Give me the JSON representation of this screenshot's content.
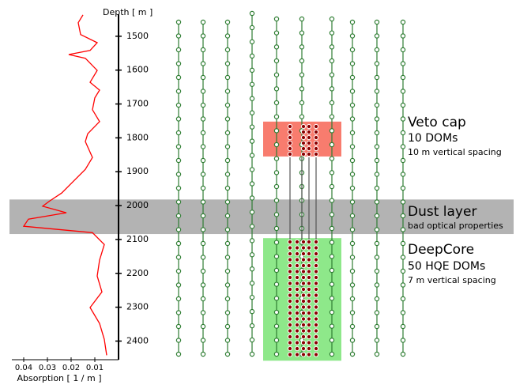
{
  "chart_data": {
    "type": "line",
    "x_label": "Absorption [ 1 / m ]",
    "y_label": "Depth [ m ]",
    "xlim": [
      0.045,
      0
    ],
    "xticks": [
      0.04,
      0.03,
      0.02,
      0.01
    ],
    "ylim": [
      1435,
      2455
    ],
    "y_inverted": true,
    "yticks": [
      1500,
      1600,
      1700,
      1800,
      1900,
      2000,
      2100,
      2200,
      2300,
      2400
    ],
    "series": [
      {
        "color": "#ff0000",
        "x": [
          0.015,
          0.017,
          0.016,
          0.009,
          0.012,
          0.021,
          0.014,
          0.009,
          0.012,
          0.008,
          0.01,
          0.011,
          0.008,
          0.013,
          0.014,
          0.011,
          0.014,
          0.019,
          0.024,
          0.029,
          0.032,
          0.022,
          0.038,
          0.04,
          0.011,
          0.006,
          0.008,
          0.009,
          0.007,
          0.012,
          0.008,
          0.006,
          0.005
        ],
        "values": [
          1437,
          1460,
          1495,
          1519,
          1542,
          1554,
          1565,
          1601,
          1636,
          1659,
          1682,
          1717,
          1752,
          1788,
          1811,
          1858,
          1893,
          1928,
          1963,
          1986,
          2002,
          2021,
          2040,
          2061,
          2080,
          2115,
          2161,
          2208,
          2255,
          2301,
          2348,
          2395,
          2442
        ]
      }
    ],
    "regions": [
      {
        "label": "Veto cap",
        "detail": "10 DOMs",
        "note": "10 m vertical spacing",
        "color": "#f87c6e",
        "depth": [
          1752,
          1855
        ]
      },
      {
        "label": "Dust layer",
        "detail": "bad optical properties",
        "color": "#b3b3b3",
        "depth": [
          1982,
          2084
        ]
      },
      {
        "label": "DeepCore",
        "detail": "50 HQE DOMs",
        "note": "7 m vertical spacing",
        "color": "#8ee88a",
        "depth": [
          2096,
          2458
        ]
      }
    ]
  }
}
